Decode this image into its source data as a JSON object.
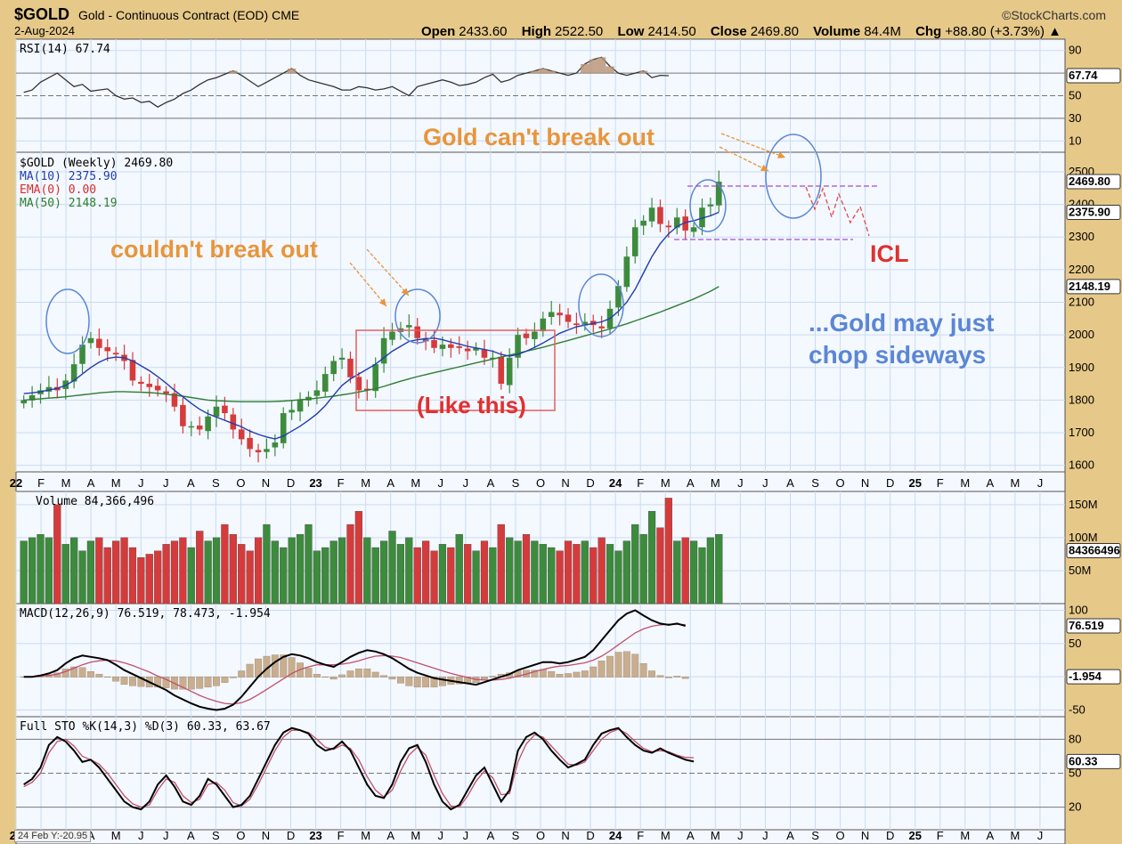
{
  "header": {
    "symbol": "$GOLD",
    "description": "Gold - Continuous Contract (EOD)  CME",
    "brand": "StockCharts.com",
    "date": "2-Aug-2024",
    "ohlc": {
      "open_label": "Open",
      "open": "2433.60",
      "high_label": "High",
      "high": "2522.50",
      "low_label": "Low",
      "low": "2414.50",
      "close_label": "Close",
      "close": "2469.80",
      "volume_label": "Volume",
      "volume": "84.4M",
      "change_label": "Chg",
      "change": "+88.80 (+3.73%) ▲"
    }
  },
  "cursor_readout": "24 Feb Y:-20.95",
  "colors": {
    "background": "#e6c889",
    "panel": "#f4f8ff",
    "grid": "#c9dcef",
    "up": "#3d8b3d",
    "down": "#d53b3b",
    "ma10": "#1f3cb0",
    "ma50": "#2e7d32",
    "ema": "#d32f2f",
    "signal": "#c0506a",
    "hist": "#c8ae8e",
    "annotation_orange": "#e8953a",
    "annotation_red": "#e03030",
    "annotation_blue": "#5b86d6",
    "projection": "#e04a4a",
    "pivot_line": "#a64ad8"
  },
  "chart_data": [
    {
      "type": "line",
      "panel": "rsi",
      "title": "RSI(14) 67.74",
      "series": [
        {
          "name": "RSI(14)",
          "values": [
            53,
            55,
            62,
            66,
            70,
            64,
            58,
            60,
            54,
            55,
            56,
            50,
            47,
            48,
            44,
            45,
            40,
            44,
            47,
            52,
            55,
            60,
            64,
            66,
            69,
            72,
            68,
            63,
            58,
            62,
            66,
            70,
            74,
            68,
            64,
            62,
            60,
            58,
            55,
            55,
            58,
            57,
            55,
            56,
            58,
            54,
            50,
            58,
            60,
            62,
            64,
            62,
            59,
            60,
            62,
            66,
            69,
            62,
            64,
            68,
            70,
            72,
            74,
            72,
            70,
            68,
            70,
            78,
            82,
            84,
            76,
            70,
            68,
            70,
            72,
            66,
            68,
            67.74
          ]
        }
      ],
      "ylim": [
        0,
        100
      ],
      "ticks": [
        "90",
        "67.74",
        "50",
        "30",
        "10"
      ],
      "reference_lines": [
        70,
        50,
        30
      ]
    },
    {
      "type": "candlestick",
      "panel": "price",
      "legend": [
        "$GOLD (Weekly) 2469.80",
        "MA(10) 2375.90",
        "EMA(0) 0.00",
        "MA(50) 2148.19"
      ],
      "x_labels": [
        "22",
        "F",
        "M",
        "A",
        "M",
        "J",
        "J",
        "A",
        "S",
        "O",
        "N",
        "D",
        "23",
        "F",
        "M",
        "A",
        "M",
        "J",
        "J",
        "A",
        "S",
        "O",
        "N",
        "D",
        "24",
        "F",
        "M",
        "A",
        "M",
        "J",
        "J",
        "A",
        "S",
        "O",
        "N",
        "D",
        "25",
        "F",
        "M",
        "A",
        "M",
        "J"
      ],
      "close": [
        1800,
        1815,
        1830,
        1840,
        1830,
        1860,
        1910,
        1970,
        1990,
        1960,
        1950,
        1940,
        1920,
        1860,
        1850,
        1840,
        1830,
        1820,
        1780,
        1720,
        1720,
        1710,
        1750,
        1780,
        1760,
        1710,
        1680,
        1650,
        1640,
        1650,
        1670,
        1760,
        1770,
        1800,
        1810,
        1830,
        1880,
        1920,
        1930,
        1870,
        1830,
        1830,
        1910,
        1990,
        2010,
        2020,
        2030,
        1990,
        1980,
        1960,
        1970,
        1960,
        1960,
        1950,
        1960,
        1930,
        1930,
        1850,
        1930,
        2000,
        1990,
        2010,
        2050,
        2070,
        2060,
        2040,
        2030,
        2040,
        2030,
        2020,
        2080,
        2150,
        2240,
        2330,
        2350,
        2390,
        2340,
        2330,
        2360,
        2320,
        2330,
        2390,
        2400,
        2469.8
      ],
      "ma10": [
        1820,
        1822,
        1826,
        1831,
        1836,
        1845,
        1860,
        1880,
        1900,
        1916,
        1928,
        1932,
        1930,
        1920,
        1905,
        1890,
        1872,
        1852,
        1830,
        1810,
        1790,
        1772,
        1758,
        1748,
        1738,
        1728,
        1718,
        1705,
        1695,
        1687,
        1681,
        1690,
        1705,
        1720,
        1738,
        1758,
        1783,
        1815,
        1845,
        1865,
        1880,
        1895,
        1910,
        1930,
        1950,
        1965,
        1980,
        1985,
        1988,
        1990,
        1985,
        1978,
        1972,
        1965,
        1960,
        1955,
        1950,
        1940,
        1935,
        1940,
        1950,
        1962,
        1975,
        1990,
        2005,
        2015,
        2025,
        2030,
        2035,
        2040,
        2050,
        2072,
        2100,
        2140,
        2190,
        2240,
        2280,
        2310,
        2332,
        2345,
        2350,
        2358,
        2365,
        2375.9
      ],
      "ma50": [
        1800,
        1802,
        1804,
        1806,
        1808,
        1810,
        1813,
        1816,
        1819,
        1822,
        1824,
        1826,
        1826,
        1825,
        1824,
        1823,
        1821,
        1818,
        1815,
        1812,
        1808,
        1804,
        1800,
        1798,
        1797,
        1796,
        1795,
        1795,
        1795,
        1795,
        1796,
        1797,
        1799,
        1801,
        1803,
        1806,
        1809,
        1812,
        1816,
        1820,
        1825,
        1830,
        1835,
        1842,
        1850,
        1858,
        1865,
        1872,
        1878,
        1884,
        1890,
        1896,
        1902,
        1908,
        1914,
        1920,
        1926,
        1932,
        1938,
        1944,
        1950,
        1956,
        1962,
        1969,
        1976,
        1983,
        1990,
        1997,
        2004,
        2011,
        2018,
        2026,
        2034,
        2043,
        2052,
        2061,
        2070,
        2080,
        2090,
        2100,
        2110,
        2122,
        2134,
        2148.19
      ],
      "ylim": [
        1580,
        2560
      ],
      "ticks": [
        2500,
        2400,
        2300,
        2200,
        2100,
        2000,
        1900,
        1800,
        1700,
        1600
      ],
      "tags": [
        "2469.80",
        "2375.90",
        "2148.19"
      ]
    },
    {
      "type": "bar",
      "panel": "volume",
      "title": "Volume 84,366,496",
      "values": [
        95,
        100,
        105,
        100,
        150,
        90,
        100,
        80,
        95,
        100,
        85,
        95,
        100,
        85,
        70,
        75,
        80,
        90,
        95,
        100,
        85,
        110,
        95,
        100,
        120,
        105,
        90,
        80,
        100,
        120,
        95,
        85,
        100,
        105,
        120,
        80,
        85,
        95,
        100,
        120,
        140,
        100,
        85,
        95,
        110,
        90,
        100,
        85,
        95,
        80,
        90,
        85,
        105,
        90,
        80,
        95,
        85,
        120,
        100,
        95,
        105,
        95,
        90,
        85,
        80,
        95,
        90,
        95,
        85,
        100,
        90,
        80,
        95,
        120,
        105,
        140,
        115,
        160,
        95,
        100,
        95,
        85,
        100,
        105,
        84.4
      ],
      "ticks": [
        "150M",
        "100M",
        "84366496",
        "50M"
      ]
    },
    {
      "type": "line",
      "panel": "macd",
      "title": "MACD(12,26,9) 76.519, 78.473, -1.954",
      "series": [
        {
          "name": "MACD",
          "values": [
            0,
            0,
            2,
            5,
            10,
            20,
            28,
            32,
            30,
            28,
            25,
            18,
            10,
            4,
            -2,
            -8,
            -14,
            -20,
            -28,
            -34,
            -40,
            -45,
            -48,
            -50,
            -48,
            -42,
            -30,
            -15,
            0,
            12,
            22,
            30,
            34,
            32,
            28,
            22,
            18,
            15,
            22,
            30,
            36,
            40,
            38,
            34,
            28,
            20,
            12,
            6,
            2,
            -2,
            -4,
            -6,
            -8,
            -10,
            -12,
            -8,
            -4,
            0,
            4,
            10,
            14,
            18,
            22,
            22,
            20,
            22,
            26,
            30,
            40,
            55,
            70,
            85,
            95,
            100,
            92,
            85,
            80,
            78,
            80,
            76.519
          ]
        },
        {
          "name": "Signal",
          "values": [
            0,
            0,
            1,
            2,
            4,
            8,
            13,
            18,
            22,
            24,
            25,
            24,
            21,
            17,
            12,
            7,
            1,
            -4,
            -10,
            -16,
            -22,
            -28,
            -33,
            -37,
            -40,
            -41,
            -39,
            -34,
            -27,
            -19,
            -11,
            -3,
            5,
            11,
            15,
            18,
            18,
            18,
            19,
            21,
            24,
            28,
            31,
            32,
            31,
            29,
            25,
            21,
            17,
            13,
            9,
            5,
            2,
            -1,
            -4,
            -5,
            -5,
            -4,
            -2,
            1,
            4,
            8,
            11,
            14,
            16,
            17,
            19,
            21,
            25,
            31,
            39,
            48,
            57,
            66,
            72,
            76,
            78,
            79,
            79,
            78.473
          ]
        }
      ],
      "histogram": [
        0,
        0,
        1,
        3,
        6,
        12,
        15,
        14,
        8,
        4,
        0,
        -6,
        -11,
        -13,
        -14,
        -15,
        -15,
        -16,
        -18,
        -18,
        -18,
        -17,
        -15,
        -13,
        -8,
        -1,
        9,
        19,
        27,
        31,
        33,
        33,
        29,
        21,
        13,
        4,
        0,
        -3,
        3,
        9,
        12,
        12,
        7,
        2,
        -3,
        -9,
        -13,
        -15,
        -15,
        -15,
        -13,
        -11,
        -10,
        -9,
        -8,
        -3,
        1,
        4,
        6,
        9,
        10,
        10,
        11,
        8,
        4,
        5,
        7,
        9,
        15,
        24,
        31,
        37,
        38,
        34,
        20,
        9,
        2,
        -1,
        1,
        -1.954
      ],
      "ylim": [
        -60,
        110
      ],
      "ticks": [
        "100",
        "76.519",
        "50",
        "-1.954",
        "-50"
      ]
    },
    {
      "type": "line",
      "panel": "sto",
      "title": "Full STO %K(14,3) %D(3) 60.33, 63.67",
      "series": [
        {
          "name": "%K",
          "values": [
            40,
            45,
            55,
            75,
            82,
            78,
            70,
            60,
            62,
            55,
            45,
            35,
            25,
            20,
            18,
            25,
            40,
            48,
            38,
            25,
            22,
            30,
            45,
            40,
            30,
            20,
            22,
            30,
            45,
            60,
            75,
            86,
            90,
            88,
            85,
            75,
            70,
            72,
            78,
            70,
            55,
            40,
            30,
            28,
            40,
            60,
            72,
            75,
            60,
            40,
            25,
            18,
            22,
            35,
            48,
            55,
            40,
            25,
            35,
            70,
            82,
            86,
            80,
            70,
            62,
            55,
            58,
            62,
            75,
            85,
            88,
            90,
            82,
            75,
            70,
            68,
            72,
            68,
            65,
            62,
            60.33
          ]
        },
        {
          "name": "%D",
          "values": [
            38,
            42,
            50,
            68,
            78,
            80,
            74,
            65,
            62,
            58,
            50,
            40,
            30,
            23,
            20,
            22,
            35,
            45,
            42,
            30,
            24,
            27,
            40,
            42,
            35,
            24,
            21,
            27,
            40,
            55,
            70,
            82,
            88,
            88,
            86,
            80,
            73,
            71,
            75,
            72,
            62,
            47,
            35,
            29,
            35,
            52,
            66,
            73,
            66,
            48,
            32,
            21,
            20,
            30,
            43,
            52,
            46,
            31,
            32,
            60,
            76,
            84,
            82,
            74,
            66,
            58,
            57,
            60,
            70,
            80,
            86,
            89,
            85,
            78,
            72,
            69,
            70,
            69,
            66,
            64,
            63.67
          ]
        }
      ],
      "ylim": [
        0,
        100
      ],
      "ticks": [
        "80",
        "60.33",
        "50",
        "20"
      ],
      "reference_lines": [
        80,
        50,
        20
      ]
    }
  ],
  "annotations": {
    "gold_cant_break_out": "Gold can't break out",
    "couldnt_break_out": "couldn't break out",
    "like_this": "(Like this)",
    "icl": "ICL",
    "chop_line1": "...Gold may just",
    "chop_line2": "chop sideways"
  }
}
